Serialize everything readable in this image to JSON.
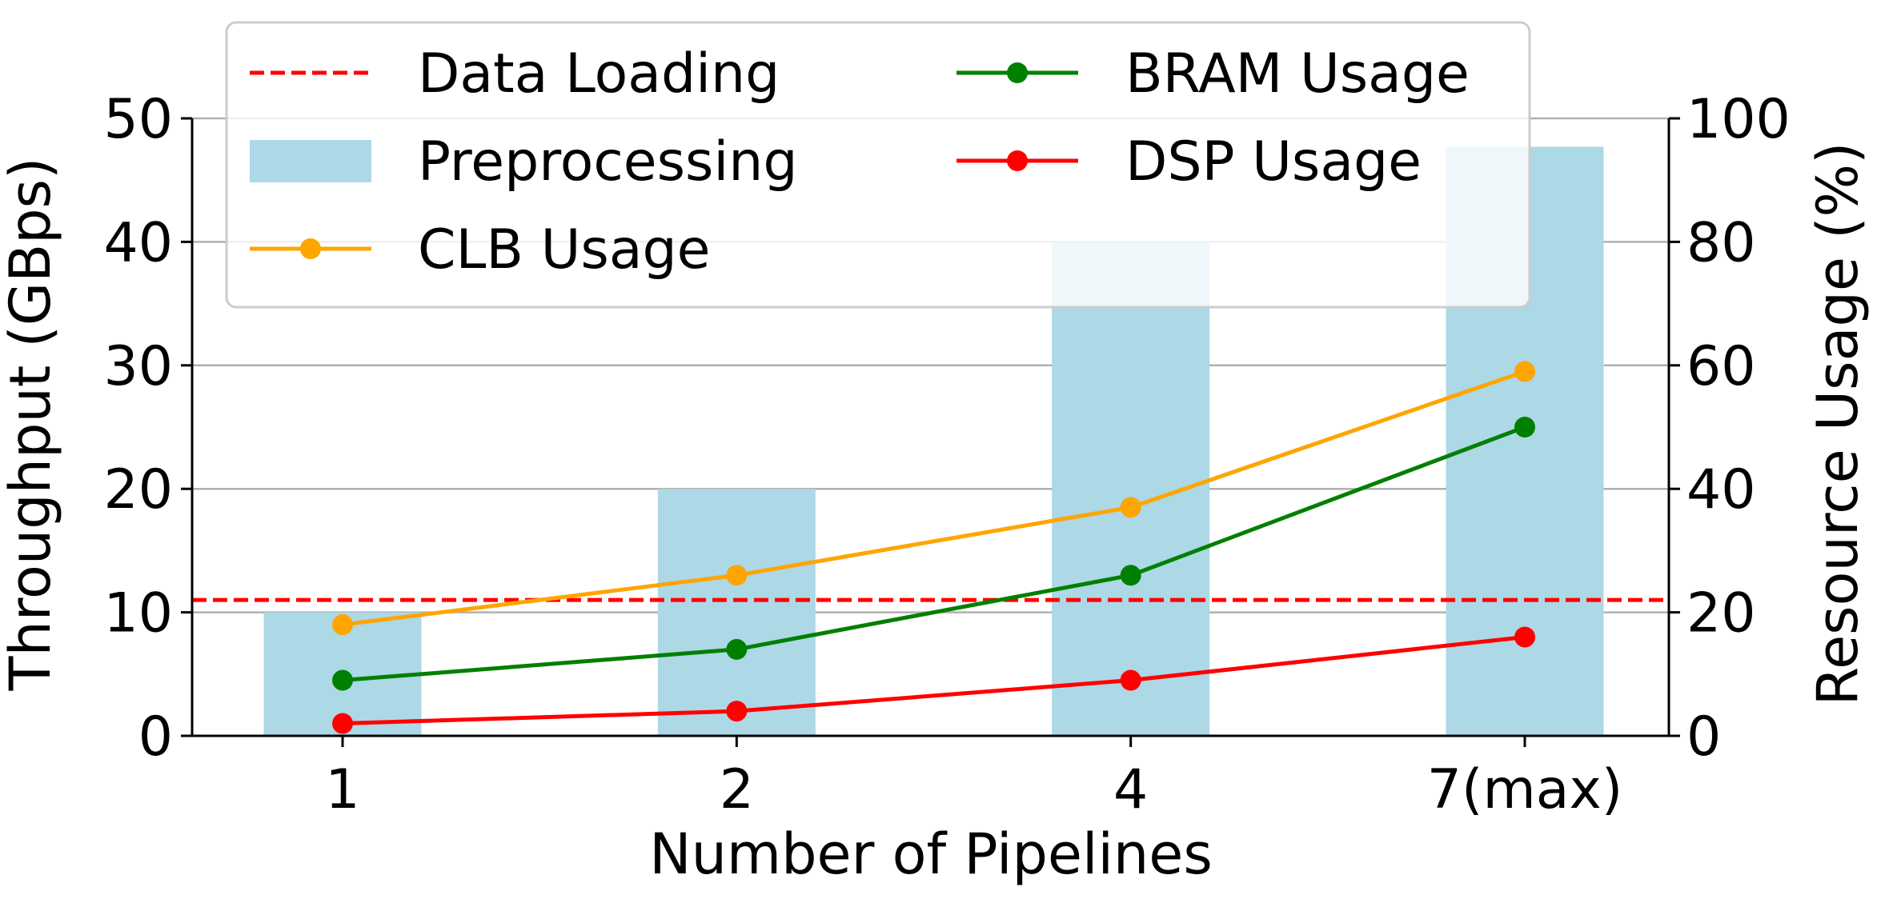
{
  "chart_data": {
    "type": "bar",
    "categories": [
      "1",
      "2",
      "4",
      "7(max)"
    ],
    "xlabel": "Number of Pipelines",
    "ylabel": "Throughput (GBps)",
    "y2label": "Resource Usage (%)",
    "ylim": [
      0,
      50
    ],
    "y2lim": [
      0,
      100
    ],
    "yticks": [
      "0",
      "10",
      "20",
      "30",
      "40",
      "50"
    ],
    "y2ticks": [
      "0",
      "20",
      "40",
      "60",
      "80",
      "100"
    ],
    "grid": "horizontal",
    "legend_position": "top-left",
    "bars": {
      "name": "Preprocessing",
      "color": "#add8e6",
      "values": [
        10,
        20,
        40,
        47.7
      ]
    },
    "reference_line": {
      "name": "Data Loading",
      "color": "#ff0000",
      "value": 11
    },
    "lines": [
      {
        "name": "CLB Usage",
        "color": "#ffa500",
        "axis": "right",
        "values": [
          18,
          26,
          37,
          59
        ]
      },
      {
        "name": "BRAM Usage",
        "color": "#008000",
        "axis": "right",
        "values": [
          9,
          14,
          26,
          50
        ]
      },
      {
        "name": "DSP Usage",
        "color": "#ff0000",
        "axis": "right",
        "values": [
          2,
          4,
          9,
          16
        ]
      }
    ]
  }
}
